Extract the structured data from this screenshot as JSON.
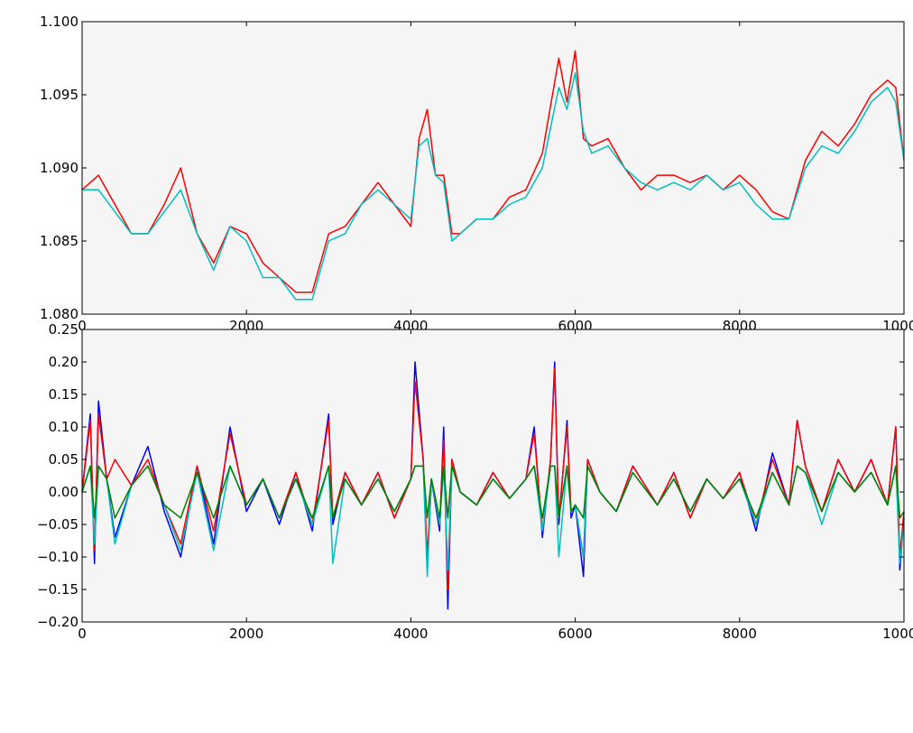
{
  "figure": {
    "background": "#ffffff",
    "plot_background": "#f5f5f5"
  },
  "chart_data": [
    {
      "type": "line",
      "title": "",
      "xlabel": "",
      "ylabel": "",
      "xlim": [
        0,
        10000
      ],
      "ylim": [
        1.08,
        1.1
      ],
      "x_tick_labels": [
        "0",
        "2000",
        "4000",
        "6000",
        "8000",
        "10000"
      ],
      "x_tick_values": [
        0,
        2000,
        4000,
        6000,
        8000,
        10000
      ],
      "y_tick_labels": [
        "1.080",
        "1.085",
        "1.090",
        "1.095",
        "1.100"
      ],
      "y_tick_values": [
        1.08,
        1.085,
        1.09,
        1.095,
        1.1
      ],
      "grid": false,
      "legend": "none",
      "series": [
        {
          "color": "#ff0000",
          "x": [
            0,
            200,
            400,
            600,
            800,
            1000,
            1200,
            1400,
            1600,
            1800,
            2000,
            2200,
            2400,
            2600,
            2800,
            3000,
            3200,
            3400,
            3600,
            3800,
            4000,
            4100,
            4200,
            4300,
            4400,
            4500,
            4600,
            4800,
            5000,
            5200,
            5400,
            5600,
            5800,
            5900,
            6000,
            6100,
            6200,
            6400,
            6600,
            6800,
            7000,
            7200,
            7400,
            7600,
            7800,
            8000,
            8200,
            8400,
            8600,
            8800,
            9000,
            9200,
            9400,
            9600,
            9800,
            9900,
            10000
          ],
          "values": [
            1.0885,
            1.0895,
            1.0875,
            1.0855,
            1.0855,
            1.0875,
            1.09,
            1.0855,
            1.0835,
            1.086,
            1.0855,
            1.0835,
            1.0825,
            1.0815,
            1.0815,
            1.0855,
            1.086,
            1.0875,
            1.089,
            1.0875,
            1.086,
            1.092,
            1.094,
            1.0895,
            1.0895,
            1.0855,
            1.0855,
            1.0865,
            1.0865,
            1.088,
            1.0885,
            1.091,
            1.0975,
            1.0945,
            1.098,
            1.092,
            1.0915,
            1.092,
            1.09,
            1.0885,
            1.0895,
            1.0895,
            1.089,
            1.0895,
            1.0885,
            1.0895,
            1.0885,
            1.087,
            1.0865,
            1.0905,
            1.0925,
            1.0915,
            1.093,
            1.095,
            1.096,
            1.0955,
            1.0905
          ]
        },
        {
          "color": "#00bfbf",
          "x": [
            0,
            200,
            400,
            600,
            800,
            1000,
            1200,
            1400,
            1600,
            1800,
            2000,
            2200,
            2400,
            2600,
            2800,
            3000,
            3200,
            3400,
            3600,
            3800,
            4000,
            4100,
            4200,
            4300,
            4400,
            4500,
            4600,
            4800,
            5000,
            5200,
            5400,
            5600,
            5800,
            5900,
            6000,
            6100,
            6200,
            6400,
            6600,
            6800,
            7000,
            7200,
            7400,
            7600,
            7800,
            8000,
            8200,
            8400,
            8600,
            8800,
            9000,
            9200,
            9400,
            9600,
            9800,
            9900,
            10000
          ],
          "values": [
            1.0885,
            1.0885,
            1.087,
            1.0855,
            1.0855,
            1.087,
            1.0885,
            1.0855,
            1.083,
            1.086,
            1.085,
            1.0825,
            1.0825,
            1.081,
            1.081,
            1.085,
            1.0855,
            1.0875,
            1.0885,
            1.0875,
            1.0865,
            1.0915,
            1.092,
            1.0895,
            1.089,
            1.085,
            1.0855,
            1.0865,
            1.0865,
            1.0875,
            1.088,
            1.09,
            1.0955,
            1.094,
            1.0965,
            1.0925,
            1.091,
            1.0915,
            1.09,
            1.089,
            1.0885,
            1.089,
            1.0885,
            1.0895,
            1.0885,
            1.089,
            1.0875,
            1.0865,
            1.0865,
            1.09,
            1.0915,
            1.091,
            1.0925,
            1.0945,
            1.0955,
            1.0945,
            1.0905
          ]
        }
      ]
    },
    {
      "type": "line",
      "title": "",
      "xlabel": "",
      "ylabel": "",
      "xlim": [
        0,
        10000
      ],
      "ylim": [
        -0.2,
        0.25
      ],
      "x_tick_labels": [
        "0",
        "2000",
        "4000",
        "6000",
        "8000",
        "10000"
      ],
      "x_tick_values": [
        0,
        2000,
        4000,
        6000,
        8000,
        10000
      ],
      "y_tick_labels": [
        "−0.20",
        "−0.15",
        "−0.10",
        "−0.05",
        "0.00",
        "0.05",
        "0.10",
        "0.15",
        "0.20",
        "0.25"
      ],
      "y_tick_values": [
        -0.2,
        -0.15,
        -0.1,
        -0.05,
        0.0,
        0.05,
        0.1,
        0.15,
        0.2,
        0.25
      ],
      "grid": false,
      "legend": "none",
      "series": [
        {
          "color": "#0000ff",
          "x": [
            0,
            100,
            150,
            200,
            300,
            400,
            600,
            800,
            1000,
            1200,
            1400,
            1600,
            1800,
            2000,
            2200,
            2400,
            2600,
            2800,
            3000,
            3050,
            3200,
            3400,
            3600,
            3800,
            4000,
            4050,
            4150,
            4200,
            4250,
            4350,
            4400,
            4450,
            4500,
            4600,
            4800,
            5000,
            5200,
            5400,
            5500,
            5600,
            5700,
            5750,
            5800,
            5900,
            5950,
            6000,
            6100,
            6150,
            6300,
            6500,
            6700,
            7000,
            7200,
            7400,
            7600,
            7800,
            8000,
            8200,
            8400,
            8600,
            8700,
            8800,
            9000,
            9200,
            9400,
            9600,
            9800,
            9900,
            9950,
            10000
          ],
          "values": [
            0.0,
            0.12,
            -0.11,
            0.14,
            0.02,
            -0.07,
            0.01,
            0.07,
            -0.03,
            -0.1,
            0.04,
            -0.08,
            0.1,
            -0.03,
            0.02,
            -0.05,
            0.03,
            -0.06,
            0.12,
            -0.05,
            0.03,
            -0.02,
            0.03,
            -0.04,
            0.02,
            0.2,
            0.05,
            -0.12,
            0.02,
            -0.06,
            0.1,
            -0.18,
            0.05,
            0.0,
            -0.02,
            0.03,
            -0.01,
            0.02,
            0.1,
            -0.07,
            0.05,
            0.2,
            -0.05,
            0.11,
            -0.04,
            -0.02,
            -0.13,
            0.05,
            0.0,
            -0.03,
            0.04,
            -0.02,
            0.03,
            -0.04,
            0.02,
            -0.01,
            0.03,
            -0.06,
            0.06,
            -0.02,
            0.11,
            0.04,
            -0.03,
            0.05,
            0.0,
            0.05,
            -0.02,
            0.1,
            -0.12,
            -0.04
          ]
        },
        {
          "color": "#ff0000",
          "x": [
            0,
            100,
            150,
            200,
            300,
            400,
            600,
            800,
            1000,
            1200,
            1400,
            1600,
            1800,
            2000,
            2200,
            2400,
            2600,
            2800,
            3000,
            3050,
            3200,
            3400,
            3600,
            3800,
            4000,
            4050,
            4150,
            4200,
            4250,
            4350,
            4400,
            4450,
            4500,
            4600,
            4800,
            5000,
            5200,
            5400,
            5500,
            5600,
            5700,
            5750,
            5800,
            5900,
            5950,
            6000,
            6100,
            6150,
            6300,
            6500,
            6700,
            7000,
            7200,
            7400,
            7600,
            7800,
            8000,
            8200,
            8400,
            8600,
            8700,
            8800,
            9000,
            9200,
            9400,
            9600,
            9800,
            9900,
            9950,
            10000
          ],
          "values": [
            0.0,
            0.11,
            -0.09,
            0.12,
            0.02,
            0.05,
            0.01,
            0.05,
            -0.02,
            -0.08,
            0.04,
            -0.06,
            0.09,
            -0.02,
            0.02,
            -0.04,
            0.03,
            -0.05,
            0.11,
            -0.04,
            0.03,
            -0.02,
            0.03,
            -0.04,
            0.02,
            0.17,
            0.05,
            -0.1,
            0.02,
            -0.05,
            0.08,
            -0.15,
            0.05,
            0.0,
            -0.02,
            0.03,
            -0.01,
            0.02,
            0.09,
            -0.06,
            0.05,
            0.19,
            -0.04,
            0.1,
            -0.03,
            -0.02,
            -0.1,
            0.05,
            0.0,
            -0.03,
            0.04,
            -0.02,
            0.03,
            -0.04,
            0.02,
            -0.01,
            0.03,
            -0.05,
            0.05,
            -0.02,
            0.11,
            0.04,
            -0.03,
            0.05,
            0.0,
            0.05,
            -0.02,
            0.1,
            -0.1,
            -0.03
          ]
        },
        {
          "color": "#00bfbf",
          "x": [
            0,
            100,
            150,
            200,
            300,
            400,
            600,
            800,
            1000,
            1200,
            1400,
            1600,
            1800,
            2000,
            2200,
            2400,
            2600,
            2800,
            3000,
            3050,
            3200,
            3400,
            3600,
            3800,
            4000,
            4050,
            4150,
            4200,
            4250,
            4350,
            4400,
            4450,
            4500,
            4600,
            4800,
            5000,
            5200,
            5400,
            5500,
            5600,
            5700,
            5750,
            5800,
            5900,
            5950,
            6000,
            6100,
            6150,
            6300,
            6500,
            6700,
            7000,
            7200,
            7400,
            7600,
            7800,
            8000,
            8200,
            8400,
            8600,
            8700,
            8800,
            9000,
            9200,
            9400,
            9600,
            9800,
            9900,
            9950,
            10000
          ],
          "values": [
            0.0,
            0.04,
            -0.08,
            0.04,
            0.02,
            -0.08,
            0.01,
            0.04,
            -0.02,
            -0.09,
            0.03,
            -0.09,
            0.04,
            -0.02,
            0.02,
            -0.04,
            0.02,
            -0.05,
            0.04,
            -0.11,
            0.02,
            -0.02,
            0.02,
            -0.03,
            0.02,
            0.04,
            0.04,
            -0.13,
            0.02,
            -0.05,
            0.04,
            -0.12,
            0.04,
            0.0,
            -0.02,
            0.02,
            -0.01,
            0.02,
            0.04,
            -0.06,
            0.04,
            0.04,
            -0.1,
            0.04,
            -0.03,
            -0.02,
            -0.1,
            0.04,
            0.0,
            -0.03,
            0.03,
            -0.02,
            0.02,
            -0.03,
            0.02,
            -0.01,
            0.02,
            -0.05,
            0.03,
            -0.02,
            0.04,
            0.03,
            -0.05,
            0.03,
            0.0,
            0.03,
            -0.02,
            0.04,
            -0.11,
            -0.05
          ]
        },
        {
          "color": "#008000",
          "x": [
            0,
            100,
            150,
            200,
            300,
            400,
            600,
            800,
            1000,
            1200,
            1400,
            1600,
            1800,
            2000,
            2200,
            2400,
            2600,
            2800,
            3000,
            3050,
            3200,
            3400,
            3600,
            3800,
            4000,
            4050,
            4150,
            4200,
            4250,
            4350,
            4400,
            4450,
            4500,
            4600,
            4800,
            5000,
            5200,
            5400,
            5500,
            5600,
            5700,
            5750,
            5800,
            5900,
            5950,
            6000,
            6100,
            6150,
            6300,
            6500,
            6700,
            7000,
            7200,
            7400,
            7600,
            7800,
            8000,
            8200,
            8400,
            8600,
            8700,
            8800,
            9000,
            9200,
            9400,
            9600,
            9800,
            9900,
            9950,
            10000
          ],
          "values": [
            0.0,
            0.04,
            -0.04,
            0.04,
            0.02,
            -0.04,
            0.01,
            0.04,
            -0.02,
            -0.04,
            0.03,
            -0.04,
            0.04,
            -0.02,
            0.02,
            -0.04,
            0.02,
            -0.04,
            0.04,
            -0.04,
            0.02,
            -0.02,
            0.02,
            -0.03,
            0.02,
            0.04,
            0.04,
            -0.04,
            0.02,
            -0.04,
            0.04,
            -0.04,
            0.04,
            0.0,
            -0.02,
            0.02,
            -0.01,
            0.02,
            0.04,
            -0.04,
            0.04,
            0.04,
            -0.04,
            0.04,
            -0.03,
            -0.02,
            -0.04,
            0.04,
            0.0,
            -0.03,
            0.03,
            -0.02,
            0.02,
            -0.03,
            0.02,
            -0.01,
            0.02,
            -0.04,
            0.03,
            -0.02,
            0.04,
            0.03,
            -0.03,
            0.03,
            0.0,
            0.03,
            -0.02,
            0.04,
            -0.04,
            -0.03
          ]
        }
      ]
    }
  ]
}
